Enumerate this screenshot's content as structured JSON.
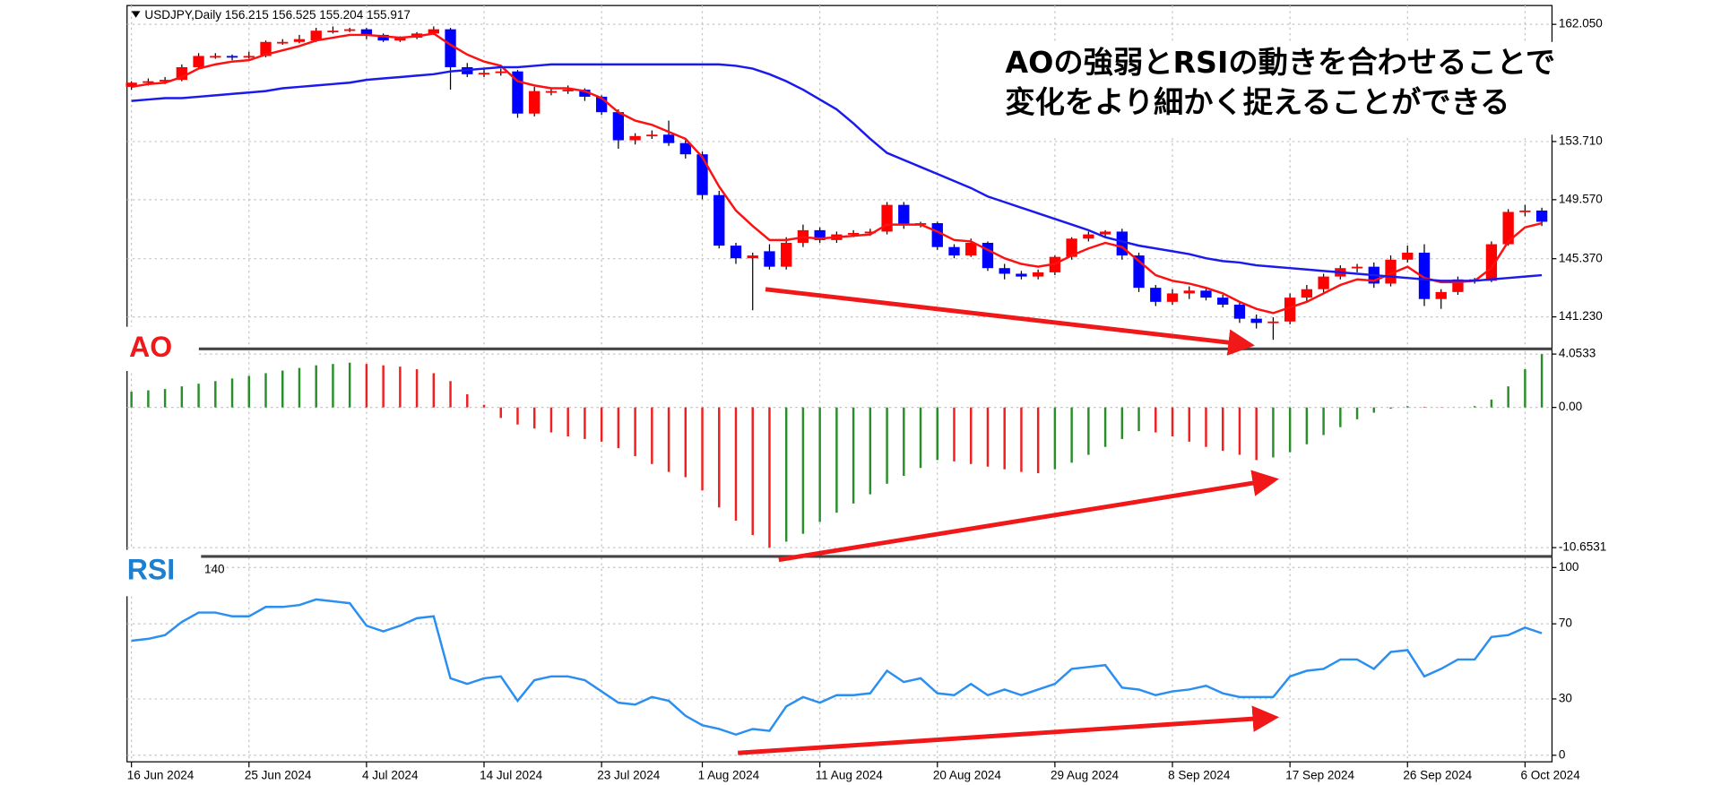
{
  "chart_data": [
    {
      "type": "candlestick",
      "title": "USDJPY,Daily  156.215 156.525 155.204 155.917",
      "annotation": [
        "AOの強弱とRSIの動きを合わせることで",
        "変化をより細かく捉えることができる"
      ],
      "open": [
        157.6,
        157.9,
        158.0,
        158.1,
        159.0,
        159.8,
        159.8,
        159.7,
        159.8,
        160.8,
        160.8,
        160.9,
        161.6,
        161.6,
        161.7,
        161.3,
        160.9,
        161.1,
        161.4,
        161.7,
        159.0,
        158.5,
        158.6,
        158.7,
        155.7,
        157.3,
        157.3,
        157.4,
        156.9,
        155.8,
        153.8,
        154.1,
        154.2,
        153.6,
        152.8,
        149.9,
        146.3,
        145.4,
        145.9,
        144.8,
        146.5,
        147.4,
        146.7,
        147.1,
        147.2,
        147.3,
        149.2,
        147.8,
        147.9,
        146.2,
        145.6,
        146.5,
        144.7,
        144.3,
        144.1,
        144.4,
        145.5,
        146.8,
        147.1,
        147.3,
        145.6,
        143.3,
        142.3,
        142.9,
        143.1,
        142.6,
        142.1,
        141.1,
        140.8,
        140.9,
        142.6,
        143.2,
        144.1,
        144.7,
        144.8,
        143.6,
        145.3,
        145.8,
        142.5,
        143.0,
        143.9,
        143.8,
        146.4,
        148.7,
        148.8
      ],
      "high": [
        158.0,
        158.2,
        158.3,
        159.2,
        160.0,
        160.0,
        159.9,
        160.1,
        160.9,
        161.0,
        161.3,
        161.8,
        161.9,
        161.8,
        161.8,
        161.4,
        161.2,
        161.5,
        161.9,
        161.8,
        159.3,
        158.9,
        158.9,
        158.8,
        157.6,
        157.5,
        157.7,
        157.5,
        157.0,
        156.0,
        154.3,
        154.5,
        155.2,
        153.8,
        153.0,
        150.2,
        146.5,
        145.8,
        146.4,
        146.9,
        147.8,
        147.6,
        147.3,
        147.4,
        147.5,
        149.4,
        149.4,
        148.0,
        148.0,
        146.4,
        146.8,
        146.6,
        145.0,
        144.5,
        144.6,
        145.6,
        146.9,
        147.3,
        147.4,
        147.5,
        145.8,
        143.5,
        143.2,
        143.4,
        143.3,
        142.8,
        142.3,
        141.4,
        141.2,
        142.9,
        143.5,
        144.3,
        144.9,
        145.0,
        145.1,
        145.6,
        146.3,
        146.4,
        143.2,
        144.1,
        144.0,
        146.6,
        148.9,
        149.2,
        149.0
      ],
      "low": [
        157.4,
        157.7,
        157.8,
        158.0,
        158.9,
        159.6,
        159.5,
        159.6,
        159.7,
        160.6,
        160.7,
        160.8,
        161.4,
        161.5,
        161.0,
        160.8,
        160.8,
        161.0,
        161.3,
        157.4,
        158.3,
        158.3,
        158.4,
        155.4,
        155.5,
        157.0,
        157.1,
        156.6,
        155.6,
        153.2,
        153.5,
        153.9,
        153.4,
        152.5,
        149.6,
        146.1,
        145.0,
        141.7,
        144.6,
        144.6,
        146.2,
        146.5,
        146.5,
        146.9,
        147.0,
        147.1,
        147.5,
        147.6,
        146.0,
        145.4,
        145.5,
        144.5,
        143.9,
        143.9,
        143.9,
        144.2,
        145.3,
        146.6,
        146.9,
        145.3,
        143.0,
        142.0,
        142.1,
        142.5,
        142.4,
        141.9,
        140.8,
        140.4,
        139.6,
        140.7,
        142.3,
        142.9,
        143.9,
        144.4,
        143.3,
        143.4,
        145.1,
        142.0,
        141.8,
        142.8,
        143.6,
        143.7,
        146.3,
        148.4,
        147.7
      ],
      "close": [
        157.9,
        158.0,
        158.1,
        159.0,
        159.8,
        159.8,
        159.7,
        159.8,
        160.8,
        160.8,
        161.0,
        161.6,
        161.6,
        161.7,
        161.3,
        160.9,
        161.1,
        161.4,
        161.7,
        159.0,
        158.5,
        158.6,
        158.7,
        155.7,
        157.3,
        157.3,
        157.4,
        156.9,
        155.8,
        153.8,
        154.1,
        154.2,
        153.6,
        152.8,
        149.9,
        146.3,
        145.4,
        145.6,
        144.8,
        146.5,
        147.4,
        146.7,
        147.1,
        147.2,
        147.3,
        149.2,
        147.8,
        147.9,
        146.2,
        145.6,
        146.5,
        144.7,
        144.3,
        144.1,
        144.4,
        145.5,
        146.8,
        147.1,
        147.3,
        145.6,
        143.3,
        142.3,
        142.9,
        143.1,
        142.6,
        142.1,
        141.1,
        140.8,
        140.9,
        142.6,
        143.2,
        144.1,
        144.7,
        144.8,
        143.6,
        145.3,
        145.8,
        142.5,
        143.0,
        143.9,
        143.8,
        146.4,
        148.7,
        148.8,
        148.0
      ],
      "up_color": "#ff0000",
      "down_color": "#0000ff",
      "lines": [
        {
          "color": "#ff1010",
          "values": [
            157.6,
            157.8,
            157.9,
            158.3,
            158.9,
            159.2,
            159.4,
            159.5,
            159.9,
            160.2,
            160.5,
            160.9,
            161.1,
            161.3,
            161.3,
            161.2,
            161.1,
            161.2,
            161.4,
            160.6,
            159.9,
            159.4,
            159.1,
            158.0,
            157.7,
            157.5,
            157.5,
            157.3,
            156.8,
            155.8,
            155.2,
            154.9,
            154.4,
            153.9,
            152.6,
            150.5,
            148.8,
            147.7,
            146.7,
            146.7,
            146.9,
            146.8,
            146.9,
            147.0,
            147.1,
            147.8,
            147.8,
            147.8,
            147.3,
            146.7,
            146.6,
            146.0,
            145.4,
            145.0,
            144.8,
            145.0,
            145.6,
            146.1,
            146.5,
            146.2,
            145.2,
            144.2,
            143.8,
            143.6,
            143.3,
            142.9,
            142.3,
            141.8,
            141.5,
            141.9,
            142.3,
            142.9,
            143.5,
            143.9,
            143.8,
            144.3,
            144.8,
            144.0,
            143.7,
            143.7,
            143.8,
            144.7,
            146.6,
            147.6,
            147.9
          ]
        },
        {
          "color": "#1a1aee",
          "values": [
            156.6,
            156.7,
            156.8,
            156.8,
            156.9,
            157.0,
            157.1,
            157.2,
            157.3,
            157.5,
            157.6,
            157.7,
            157.8,
            157.9,
            158.1,
            158.2,
            158.3,
            158.4,
            158.5,
            158.7,
            158.8,
            158.9,
            159.0,
            159.0,
            159.1,
            159.2,
            159.2,
            159.2,
            159.2,
            159.2,
            159.2,
            159.2,
            159.2,
            159.2,
            159.2,
            159.2,
            159.1,
            158.9,
            158.5,
            158.0,
            157.4,
            156.7,
            156.0,
            155.0,
            153.9,
            152.9,
            152.4,
            151.9,
            151.4,
            150.9,
            150.4,
            149.8,
            149.4,
            149.0,
            148.6,
            148.2,
            147.8,
            147.4,
            146.9,
            146.6,
            146.3,
            146.1,
            145.9,
            145.7,
            145.4,
            145.2,
            145.1,
            144.9,
            144.8,
            144.7,
            144.6,
            144.5,
            144.4,
            144.3,
            144.2,
            144.1,
            144.0,
            143.9,
            143.8,
            143.8,
            143.8,
            143.9,
            144.0,
            144.1,
            144.2
          ]
        }
      ],
      "ylim": [
        139.03,
        163.39
      ],
      "yticks": [
        {
          "value": 162.05,
          "label": "162.050"
        },
        {
          "value": 153.71,
          "label": "153.710"
        },
        {
          "value": 149.57,
          "label": "149.570"
        },
        {
          "value": 145.37,
          "label": "145.370"
        },
        {
          "value": 141.23,
          "label": "141.230"
        }
      ],
      "grid": true
    },
    {
      "type": "bar",
      "label": "AO",
      "values": [
        1.2,
        1.3,
        1.4,
        1.6,
        1.8,
        2.0,
        2.2,
        2.4,
        2.6,
        2.8,
        3.0,
        3.2,
        3.3,
        3.4,
        3.3,
        3.2,
        3.1,
        2.9,
        2.6,
        2.0,
        1.0,
        0.2,
        -0.8,
        -1.3,
        -1.6,
        -1.9,
        -2.2,
        -2.4,
        -2.6,
        -3.1,
        -3.7,
        -4.3,
        -4.9,
        -5.3,
        -6.3,
        -7.6,
        -8.6,
        -9.7,
        -10.6531,
        -10.2,
        -9.6,
        -8.7,
        -8.0,
        -7.3,
        -6.6,
        -5.8,
        -5.2,
        -4.6,
        -4.0,
        -4.1,
        -4.3,
        -4.5,
        -4.7,
        -4.9,
        -5.0,
        -4.7,
        -4.2,
        -3.6,
        -3.0,
        -2.4,
        -1.8,
        -1.9,
        -2.2,
        -2.6,
        -3.0,
        -3.3,
        -3.6,
        -4.0,
        -3.8,
        -3.4,
        -2.8,
        -2.1,
        -1.5,
        -0.9,
        -0.4,
        -0.1,
        0.1,
        0.05,
        0.02,
        0.0,
        0.1,
        0.6,
        1.6,
        2.9,
        4.0533
      ],
      "up_color": "#2a8f2a",
      "down_color": "#f02020",
      "ylim": [
        -11.24,
        4.28
      ],
      "yticks": [
        4.0533,
        {
          "value": 0,
          "label": "0.00"
        },
        -10.6531
      ],
      "grid": true
    },
    {
      "type": "line",
      "label": "RSI",
      "sublabel": "140",
      "color": "#2a8ff0",
      "categories": [
        "16 Jun 2024",
        null,
        null,
        null,
        null,
        null,
        null,
        "25 Jun 2024",
        null,
        null,
        null,
        null,
        null,
        null,
        "4 Jul 2024",
        null,
        null,
        null,
        null,
        null,
        null,
        "14 Jul 2024",
        null,
        null,
        null,
        null,
        null,
        null,
        "23 Jul 2024",
        null,
        null,
        null,
        null,
        null,
        "1 Aug 2024",
        null,
        null,
        null,
        null,
        null,
        null,
        "11 Aug 2024",
        null,
        null,
        null,
        null,
        null,
        null,
        "20 Aug 2024",
        null,
        null,
        null,
        null,
        null,
        null,
        "29 Aug 2024",
        null,
        null,
        null,
        null,
        null,
        null,
        "8 Sep 2024",
        null,
        null,
        null,
        null,
        null,
        null,
        "17 Sep 2024",
        null,
        null,
        null,
        null,
        null,
        null,
        "26 Sep 2024",
        null,
        null,
        null,
        null,
        null,
        null,
        "6 Oct 2024",
        null
      ],
      "values": [
        61,
        62,
        64,
        71,
        76,
        76,
        74,
        74,
        79,
        79,
        80,
        83,
        82,
        81,
        69,
        66,
        69,
        73,
        74,
        41,
        38,
        41,
        42,
        29,
        40,
        42,
        42,
        40,
        34,
        28,
        27,
        31,
        29,
        21,
        16,
        14,
        11,
        14,
        13,
        26,
        31,
        28,
        32,
        32,
        33,
        45,
        39,
        41,
        33,
        32,
        38,
        32,
        35,
        32,
        35,
        38,
        46,
        47,
        48,
        36,
        35,
        32,
        34,
        35,
        37,
        33,
        31,
        31,
        31,
        42,
        45,
        46,
        51,
        51,
        46,
        55,
        56,
        42,
        46,
        51,
        51,
        63,
        64,
        68,
        65
      ],
      "ylim": [
        -3.5,
        105.3
      ],
      "yticks": [
        100,
        70,
        30,
        0
      ],
      "grid": true
    }
  ]
}
